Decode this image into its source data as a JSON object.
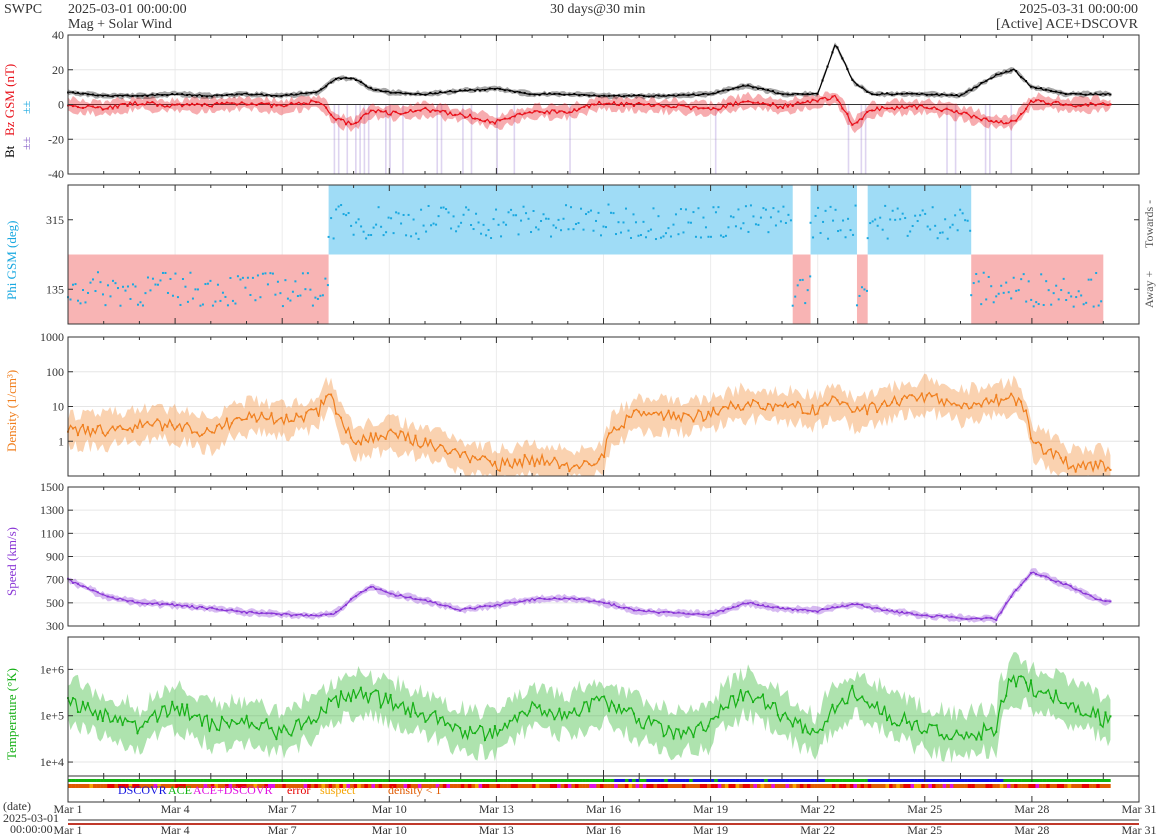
{
  "header": {
    "agency": "SWPC",
    "start": "2025-03-01 00:00:00",
    "subtitle": "Mag + Solar Wind",
    "span": "30 days@30 min",
    "end": "2025-03-31 00:00:00",
    "source": "[Active] ACE+DSCOVR"
  },
  "colors": {
    "bt": "#000000",
    "bz": "#e8101a",
    "bz_fill": "#8a63c9",
    "phi": "#19a8e0",
    "phi_toward": "#9fdcf6",
    "phi_away": "#f8b4b4",
    "density": "#f07f1e",
    "speed": "#8a37d6",
    "temperature": "#17b017",
    "dscovr": "#1414e0",
    "ace": "#11b411",
    "ace_dscovr": "#e010e0",
    "error": "#e60000",
    "suspect": "#f5a400",
    "density_lt1": "#e05a00"
  },
  "legend": {
    "dscovr": "DSCOVR",
    "ace": "ACE",
    "ace_dscovr": "ACE+DSCOVR",
    "error": "error",
    "suspect": "suspect",
    "density_lt1": "density < 1"
  },
  "bottom": {
    "date_label": "(date)",
    "date_value": "2025-03-01",
    "time_value": "00:00:00"
  },
  "chart_data": [
    {
      "type": "line",
      "ylabel": [
        "Bt",
        "Bz GSM (nT)"
      ],
      "ylim": [
        -40,
        40
      ],
      "yticks": [
        "40",
        "20",
        "0",
        "-20",
        "-40"
      ],
      "series": [
        {
          "name": "Bt",
          "x_days": [
            0,
            1,
            2,
            3,
            4,
            5,
            6,
            7,
            7.5,
            8,
            8.5,
            9,
            10,
            11,
            12,
            13,
            14,
            15,
            16,
            17,
            18,
            19,
            20,
            21,
            21.5,
            22,
            22.5,
            23,
            24,
            25,
            26,
            26.5,
            27,
            28,
            29
          ],
          "values": [
            7,
            5,
            5,
            6,
            5,
            6,
            5,
            7,
            15,
            15,
            9,
            7,
            6,
            8,
            9,
            6,
            6,
            5,
            5,
            5,
            6,
            11,
            6,
            6,
            35,
            13,
            6,
            6,
            6,
            5,
            17,
            20,
            10,
            6,
            6
          ]
        },
        {
          "name": "Bz GSM",
          "x_days": [
            0,
            1,
            2,
            3,
            4,
            5,
            6,
            7,
            7.5,
            8,
            8.5,
            9,
            10,
            11,
            12,
            13,
            14,
            15,
            16,
            17,
            18,
            19,
            20,
            21,
            21.5,
            22,
            22.5,
            23,
            24,
            25,
            26,
            26.5,
            27,
            28,
            29
          ],
          "values": [
            0,
            -2,
            1,
            -1,
            0,
            1,
            -1,
            2,
            -8,
            -12,
            -3,
            -5,
            -3,
            -6,
            -10,
            -4,
            -4,
            1,
            0,
            -1,
            -3,
            2,
            -1,
            2,
            5,
            -12,
            -3,
            -2,
            -1,
            -5,
            -10,
            -10,
            2,
            0,
            0
          ]
        }
      ]
    },
    {
      "type": "scatter",
      "ylabel": "Phi GSM (deg)",
      "ylim": [
        45,
        405
      ],
      "yticks": [
        "315",
        "135"
      ],
      "right_labels": [
        "Towards -",
        "Away +"
      ],
      "sectors": [
        {
          "start": 0,
          "end": 7.3,
          "side": "away"
        },
        {
          "start": 7.3,
          "end": 20.3,
          "side": "towards"
        },
        {
          "start": 20.3,
          "end": 20.8,
          "side": "away"
        },
        {
          "start": 20.8,
          "end": 22.1,
          "side": "towards"
        },
        {
          "start": 22.1,
          "end": 22.4,
          "side": "away"
        },
        {
          "start": 22.4,
          "end": 25.3,
          "side": "towards"
        },
        {
          "start": 25.3,
          "end": 29,
          "side": "away"
        }
      ]
    },
    {
      "type": "line",
      "ylabel": "Density (1/cm³)",
      "yscale": "log",
      "ylim": [
        0.1,
        1000
      ],
      "yticks": [
        "1000",
        "100",
        "10",
        "1"
      ],
      "series": [
        {
          "name": "Density",
          "x_days": [
            0,
            1,
            2,
            3,
            4,
            5,
            6,
            7,
            7.3,
            7.6,
            8,
            9,
            10,
            11,
            12,
            13,
            14,
            15,
            16,
            17,
            18,
            19,
            20,
            21,
            21.5,
            22,
            23,
            24,
            25,
            26,
            26.5,
            27,
            28,
            29
          ],
          "values": [
            2,
            2,
            3,
            3,
            1.5,
            5,
            4,
            6,
            20,
            4,
            1,
            1.5,
            0.9,
            0.4,
            0.2,
            0.3,
            0.2,
            0.3,
            6,
            5,
            6,
            12,
            11,
            7,
            15,
            6,
            12,
            20,
            10,
            15,
            18,
            0.8,
            0.2,
            0.2
          ]
        }
      ]
    },
    {
      "type": "line",
      "ylabel": "Speed (km/s)",
      "ylim": [
        300,
        1500
      ],
      "yticks": [
        "1500",
        "1300",
        "1100",
        "900",
        "700",
        "500",
        "300"
      ],
      "series": [
        {
          "name": "Speed",
          "x_days": [
            0,
            1,
            2,
            3,
            4,
            5,
            6,
            7,
            7.5,
            8,
            8.5,
            9,
            10,
            11,
            12,
            13,
            14,
            15,
            16,
            17,
            18,
            19,
            20,
            21,
            22,
            23,
            24,
            25,
            26,
            26.5,
            27,
            28,
            29
          ],
          "values": [
            700,
            560,
            500,
            480,
            450,
            420,
            400,
            390,
            410,
            550,
            640,
            580,
            520,
            440,
            480,
            530,
            540,
            500,
            430,
            410,
            400,
            500,
            450,
            430,
            490,
            430,
            390,
            370,
            360,
            590,
            770,
            650,
            510
          ]
        }
      ]
    },
    {
      "type": "line",
      "ylabel": "Temperature (°K)",
      "yscale": "log",
      "ylim": [
        5000,
        5000000
      ],
      "yticks": [
        "1e+6",
        "1e+5",
        "1e+4"
      ],
      "series": [
        {
          "name": "Temperature",
          "x_days": [
            0,
            1,
            2,
            3,
            4,
            5,
            6,
            7,
            8,
            9,
            10,
            11,
            12,
            13,
            14,
            15,
            16,
            17,
            18,
            19,
            20,
            21,
            22,
            23,
            24,
            25,
            26,
            26.5,
            27,
            28,
            29
          ],
          "values": [
            200000,
            100000,
            50000,
            150000,
            60000,
            80000,
            40000,
            100000,
            300000,
            200000,
            100000,
            50000,
            40000,
            150000,
            100000,
            200000,
            80000,
            40000,
            60000,
            300000,
            100000,
            30000,
            300000,
            100000,
            50000,
            40000,
            50000,
            600000,
            400000,
            200000,
            80000
          ]
        }
      ]
    }
  ],
  "xaxis": {
    "labels": [
      "Mar 1",
      "Mar 4",
      "Mar 7",
      "Mar 10",
      "Mar 13",
      "Mar 16",
      "Mar 19",
      "Mar 22",
      "Mar 25",
      "Mar 28",
      "Mar 31"
    ],
    "label_days": [
      0,
      3,
      6,
      9,
      12,
      15,
      18,
      21,
      24,
      27,
      30
    ]
  }
}
